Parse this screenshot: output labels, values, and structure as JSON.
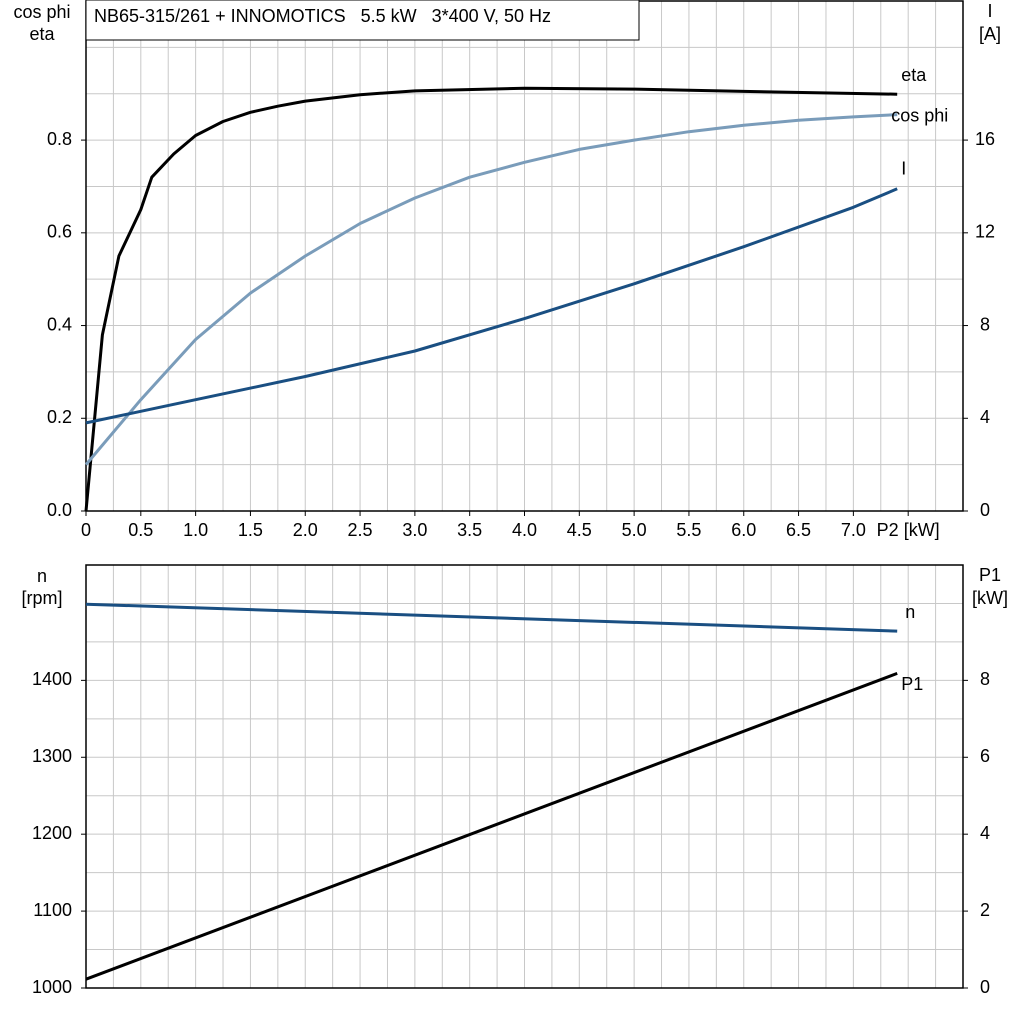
{
  "chart_data": [
    {
      "type": "line",
      "title": "NB65-315/261 + INNOMOTICS   5.5 kW   3*400 V, 50 Hz",
      "y_label": [
        "cos phi",
        "eta"
      ],
      "y2_label": [
        "I",
        "[A]"
      ],
      "xlim": [
        0,
        8
      ],
      "xticks": [
        0,
        0.5,
        {
          "value": 1,
          "label": "1.0"
        },
        1.5,
        {
          "value": 2,
          "label": "2.0"
        },
        2.5,
        {
          "value": 3,
          "label": "3.0"
        },
        3.5,
        {
          "value": 4,
          "label": "4.0"
        },
        4.5,
        {
          "value": 5,
          "label": "5.0"
        },
        5.5,
        {
          "value": 6,
          "label": "6.0"
        },
        6.5,
        {
          "value": 7,
          "label": "7.0"
        },
        {
          "value": 7.5,
          "label": "P2 [kW]"
        }
      ],
      "xgrid": [
        0.25,
        0.5,
        0.75,
        1,
        1.25,
        1.5,
        1.75,
        2,
        2.25,
        2.5,
        2.75,
        3,
        3.25,
        3.5,
        3.75,
        4,
        4.25,
        4.5,
        4.75,
        5,
        5.25,
        5.5,
        5.75,
        6,
        6.25,
        6.5,
        6.75,
        7,
        7.25,
        7.5,
        7.75
      ],
      "ylim": [
        0,
        1.1
      ],
      "yticks": [
        {
          "value": 0,
          "label": "0.0"
        },
        0.2,
        0.4,
        0.6,
        0.8
      ],
      "ygrid": [
        0.1,
        0.2,
        0.3,
        0.4,
        0.5,
        0.6,
        0.7,
        0.8,
        0.9,
        1.0
      ],
      "y2lim": [
        0,
        22
      ],
      "y2ticks": [
        0,
        4,
        8,
        12,
        16
      ],
      "grid": true,
      "series": [
        {
          "name": "eta",
          "color": "#000000",
          "axis": "y",
          "x": [
            0,
            0.15,
            0.3,
            0.5,
            0.6,
            0.8,
            1.0,
            1.25,
            1.5,
            1.75,
            2.0,
            2.5,
            3.0,
            4.0,
            5.0,
            6.0,
            7.4
          ],
          "values": [
            0,
            0.38,
            0.55,
            0.65,
            0.72,
            0.77,
            0.81,
            0.84,
            0.86,
            0.873,
            0.884,
            0.898,
            0.906,
            0.912,
            0.91,
            0.905,
            0.899
          ]
        },
        {
          "name": "cos phi",
          "color": "#7a9cba",
          "axis": "y",
          "x": [
            0,
            0.5,
            1.0,
            1.5,
            2.0,
            2.5,
            3.0,
            3.5,
            4.0,
            4.5,
            5.0,
            5.5,
            6.0,
            6.5,
            7.0,
            7.4
          ],
          "values": [
            0.1,
            0.24,
            0.37,
            0.47,
            0.55,
            0.62,
            0.675,
            0.72,
            0.752,
            0.78,
            0.8,
            0.818,
            0.832,
            0.843,
            0.85,
            0.855
          ]
        },
        {
          "name": "I",
          "color": "#1a4f82",
          "axis": "y2",
          "x": [
            0,
            1.0,
            2.0,
            3.0,
            4.0,
            5.0,
            6.0,
            7.0,
            7.4
          ],
          "values": [
            3.8,
            4.8,
            5.8,
            6.9,
            8.3,
            9.8,
            11.4,
            13.1,
            13.9
          ]
        }
      ]
    },
    {
      "type": "line",
      "y_label": [
        "n",
        "[rpm]"
      ],
      "y2_label": [
        "P1",
        "[kW]"
      ],
      "xlim": [
        0,
        8
      ],
      "xgrid": [
        0.25,
        0.5,
        0.75,
        1,
        1.25,
        1.5,
        1.75,
        2,
        2.25,
        2.5,
        2.75,
        3,
        3.25,
        3.5,
        3.75,
        4,
        4.25,
        4.5,
        4.75,
        5,
        5.25,
        5.5,
        5.75,
        6,
        6.25,
        6.5,
        6.75,
        7,
        7.25,
        7.5,
        7.75
      ],
      "ylim": [
        1000,
        1550
      ],
      "yticks": [
        1000,
        1100,
        1200,
        1300,
        1400
      ],
      "ygrid": [
        1050,
        1100,
        1150,
        1200,
        1250,
        1300,
        1350,
        1400,
        1450,
        1500
      ],
      "y2lim": [
        0,
        11
      ],
      "y2ticks": [
        0,
        2,
        4,
        6,
        8
      ],
      "grid": true,
      "series": [
        {
          "name": "n",
          "color": "#1a4f82",
          "axis": "y",
          "x": [
            0,
            7.4
          ],
          "values": [
            1499,
            1464
          ]
        },
        {
          "name": "P1",
          "color": "#000000",
          "axis": "y2",
          "x": [
            0,
            7.4
          ],
          "values": [
            0.23,
            8.18
          ]
        }
      ]
    }
  ]
}
